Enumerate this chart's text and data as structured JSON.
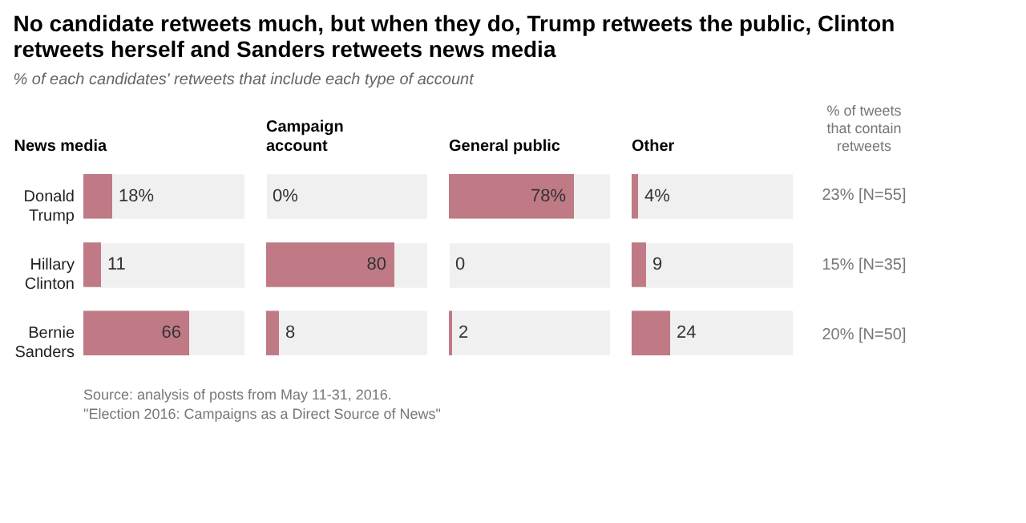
{
  "chart_data": [
    {
      "type": "bar",
      "orientation": "horizontal",
      "title": "No candidate retweets much, but when they do, Trump retweets the public, Clinton retweets herself and Sanders retweets news media",
      "subtitle": "% of each candidates' retweets that include each type of account",
      "annotations": [
        "Source: analysis of posts from May 11-31, 2016.",
        "\"Election 2016: Campaigns as a Direct Source of News\""
      ],
      "xlabel": "News media",
      "categories": [
        "Donald Trump",
        "Hillary Clinton",
        "Bernie Sanders"
      ],
      "values": [
        18,
        11,
        66
      ],
      "value_labels": [
        "18%",
        "11",
        "66"
      ],
      "color": "#bf7a86",
      "xlim": [
        0,
        100
      ],
      "grid": "y",
      "tick_labels": "y"
    },
    {
      "type": "bar",
      "orientation": "horizontal",
      "xlabel": "Campaign account",
      "categories": [
        "Donald Trump",
        "Hillary Clinton",
        "Bernie Sanders"
      ],
      "values": [
        0,
        80,
        8
      ],
      "value_labels": [
        "0%",
        "80",
        "8"
      ],
      "color": "#bf7a86",
      "xlim": [
        0,
        100
      ],
      "grid": "y",
      "tick_labels": false
    },
    {
      "type": "bar",
      "orientation": "horizontal",
      "xlabel": "General public",
      "categories": [
        "Donald Trump",
        "Hillary Clinton",
        "Bernie Sanders"
      ],
      "values": [
        78,
        0,
        2
      ],
      "value_labels": [
        "78%",
        "0",
        "2"
      ],
      "color": "#bf7a86",
      "xlim": [
        0,
        100
      ],
      "grid": "y",
      "tick_labels": false
    },
    {
      "type": "bar",
      "orientation": "horizontal",
      "xlabel": "Other",
      "categories": [
        "Donald Trump",
        "Hillary Clinton",
        "Bernie Sanders"
      ],
      "values": [
        4,
        9,
        24
      ],
      "value_labels": [
        "4%",
        "9",
        "24"
      ],
      "color": "#bf7a86",
      "xlim": [
        0,
        100
      ],
      "grid": "y",
      "tick_labels": false
    },
    {
      "type": "other",
      "title": "% of tweets that contain retweets",
      "annotations": [
        "23% [N=55]",
        "15% [N=35]",
        "20% [N=50]"
      ]
    }
  ]
}
